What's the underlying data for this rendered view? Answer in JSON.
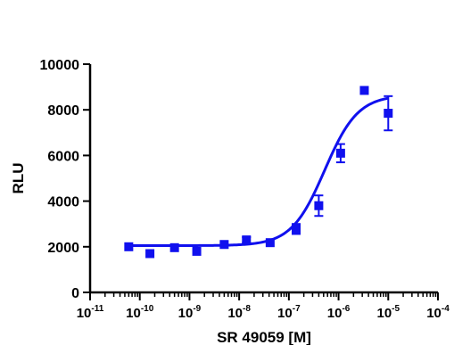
{
  "chart_data": {
    "type": "scatter",
    "title": "",
    "xlabel": "SR 49059 [M]",
    "ylabel": "RLU",
    "x_scale": "log10",
    "xlim": [
      1e-11,
      0.0001
    ],
    "ylim": [
      0,
      10000
    ],
    "y_ticks": [
      0,
      2000,
      4000,
      6000,
      8000,
      10000
    ],
    "y_tick_labels": [
      "0",
      "2000",
      "4000",
      "6000",
      "8000",
      "10000"
    ],
    "x_tick_labels": [
      {
        "base": "10",
        "exp": "-11"
      },
      {
        "base": "10",
        "exp": "-10"
      },
      {
        "base": "10",
        "exp": "-9"
      },
      {
        "base": "10",
        "exp": "-8"
      },
      {
        "base": "10",
        "exp": "-7"
      },
      {
        "base": "10",
        "exp": "-6"
      },
      {
        "base": "10",
        "exp": "-5"
      },
      {
        "base": "10",
        "exp": "-4"
      }
    ],
    "grid": false,
    "legend": "none",
    "marker": "square",
    "color": "#1010ee",
    "series": [
      {
        "x": [
          6e-11,
          1.6e-10,
          5e-10,
          1.4e-09,
          5e-09,
          1.4e-08,
          4.2e-08,
          1.4e-07,
          4e-07,
          1.1e-06,
          3.3e-06,
          1e-05
        ],
        "y": [
          2000,
          1700,
          1960,
          1800,
          2100,
          2300,
          2180,
          2780,
          3800,
          6100,
          8850,
          7850
        ],
        "error": [
          0,
          0,
          0,
          0,
          0,
          120,
          0,
          220,
          450,
          400,
          0,
          750
        ]
      }
    ],
    "fit_curve": {
      "model": "sigmoidal dose-response",
      "bottom": 2050,
      "top": 8650,
      "log_ec50": -6.28,
      "hill_slope": 1.3
    }
  }
}
